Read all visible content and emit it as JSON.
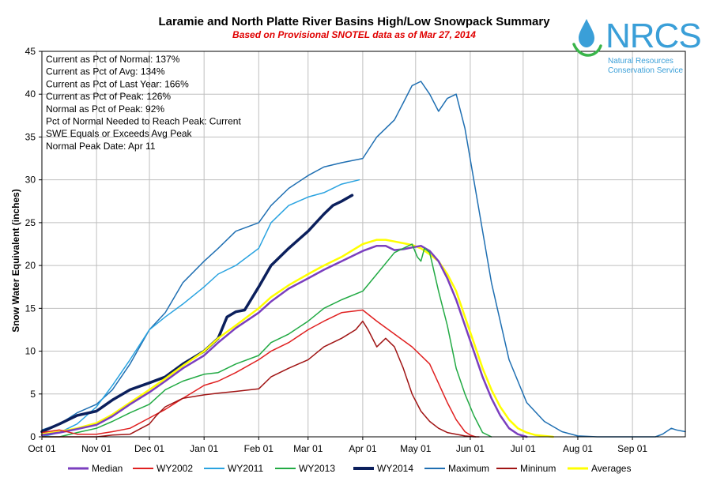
{
  "chart_data": {
    "type": "line",
    "title": "Laramie and North Platte River Basins High/Low Snowpack Summary",
    "subtitle": "Based on Provisional SNOTEL data as of Mar 27, 2014",
    "xlabel": "",
    "ylabel": "Snow Water Equivalent (inches)",
    "xlim": [
      0,
      365
    ],
    "ylim": [
      0,
      45
    ],
    "y_ticks": [
      0,
      5,
      10,
      15,
      20,
      25,
      30,
      35,
      40,
      45
    ],
    "x_ticks": [
      {
        "day": 0,
        "label": "Oct 01"
      },
      {
        "day": 31,
        "label": "Nov 01"
      },
      {
        "day": 61,
        "label": "Dec 01"
      },
      {
        "day": 92,
        "label": "Jan 01"
      },
      {
        "day": 123,
        "label": "Feb 01"
      },
      {
        "day": 151,
        "label": "Mar 01"
      },
      {
        "day": 182,
        "label": "Apr 01"
      },
      {
        "day": 212,
        "label": "May 01"
      },
      {
        "day": 243,
        "label": "Jun 01"
      },
      {
        "day": 273,
        "label": "Jul 01"
      },
      {
        "day": 304,
        "label": "Aug 01"
      },
      {
        "day": 335,
        "label": "Sep 01"
      }
    ],
    "grid": true,
    "legend_position": "bottom",
    "stats": [
      "Current  as Pct of Normal: 137%",
      "Current  as Pct of Avg: 134%",
      "Current  as Pct of Last Year: 166%",
      "Current  as Pct of Peak: 126%",
      "Normal  as Pct of Peak: 92%",
      "Pct of Normal Needed  to Reach Peak: Current",
      "SWE Equals  or Exceeds Avg Peak",
      "Normal  Peak Date: Apr 11"
    ],
    "series": [
      {
        "name": "Maximum",
        "color": "#1f6fb2",
        "width": 1.5,
        "x": [
          0,
          10,
          20,
          31,
          40,
          50,
          61,
          70,
          80,
          92,
          100,
          110,
          123,
          130,
          140,
          151,
          160,
          170,
          182,
          190,
          200,
          205,
          210,
          215,
          220,
          225,
          230,
          235,
          240,
          245,
          255,
          265,
          275,
          285,
          295,
          304,
          315,
          330,
          340,
          348,
          352,
          357,
          360,
          365
        ],
        "y": [
          0.8,
          1.5,
          2.8,
          3.8,
          5.5,
          8.5,
          12.5,
          14.5,
          18,
          20.5,
          22,
          24,
          25,
          27,
          29,
          30.5,
          31.5,
          32,
          32.5,
          35,
          37,
          39,
          41,
          41.5,
          40,
          38,
          39.5,
          40,
          36,
          30,
          18,
          9,
          4,
          1.8,
          0.6,
          0.1,
          0,
          0,
          0,
          0,
          0.3,
          1,
          0.8,
          0.6
        ]
      },
      {
        "name": "WY2011",
        "color": "#2aa3e0",
        "width": 1.5,
        "x": [
          0,
          10,
          20,
          31,
          40,
          50,
          61,
          70,
          80,
          92,
          100,
          110,
          123,
          130,
          140,
          151,
          160,
          170,
          180
        ],
        "y": [
          0,
          0.5,
          1.5,
          3.5,
          6,
          9,
          12.5,
          14,
          15.5,
          17.5,
          19,
          20,
          22,
          25,
          27,
          28,
          28.5,
          29.5,
          30
        ]
      },
      {
        "name": "WY2014",
        "color": "#0b1f5c",
        "width": 3.5,
        "x": [
          0,
          10,
          20,
          31,
          40,
          50,
          61,
          70,
          80,
          92,
          100,
          105,
          110,
          115,
          123,
          130,
          140,
          151,
          160,
          165,
          170,
          176
        ],
        "y": [
          0.6,
          1.5,
          2.5,
          3,
          4.3,
          5.5,
          6.3,
          7,
          8.5,
          10,
          11.5,
          14,
          14.6,
          14.8,
          17.5,
          20,
          22,
          24,
          26,
          27,
          27.5,
          28.2
        ]
      },
      {
        "name": "Averages",
        "color": "#ffff00",
        "width": 2.5,
        "x": [
          0,
          10,
          20,
          31,
          40,
          50,
          61,
          70,
          80,
          92,
          100,
          110,
          123,
          130,
          140,
          151,
          160,
          170,
          182,
          190,
          195,
          200,
          205,
          210,
          215,
          220,
          225,
          230,
          235,
          240,
          245,
          250,
          255,
          260,
          265,
          270,
          275,
          280,
          285,
          290
        ],
        "y": [
          0.3,
          0.6,
          1,
          1.6,
          2.6,
          4,
          5.5,
          6.8,
          8.3,
          10,
          11.5,
          13,
          15,
          16.3,
          17.7,
          19,
          20,
          21,
          22.5,
          23,
          23,
          22.8,
          22.6,
          22.4,
          22,
          21.3,
          20.5,
          19,
          17,
          14,
          11,
          8,
          5.5,
          3.5,
          2,
          1,
          0.5,
          0.2,
          0.1,
          0
        ]
      },
      {
        "name": "Median",
        "color": "#7b3fbf",
        "width": 2.5,
        "x": [
          0,
          10,
          20,
          31,
          40,
          50,
          61,
          70,
          80,
          92,
          100,
          110,
          123,
          130,
          140,
          151,
          160,
          170,
          182,
          190,
          195,
          200,
          205,
          210,
          215,
          220,
          225,
          230,
          235,
          240,
          245,
          250,
          255,
          260,
          265,
          270,
          275
        ],
        "y": [
          0.2,
          0.5,
          0.9,
          1.4,
          2.4,
          3.8,
          5.2,
          6.5,
          8,
          9.5,
          11,
          12.7,
          14.5,
          15.8,
          17.3,
          18.5,
          19.5,
          20.5,
          21.7,
          22.3,
          22.3,
          21.8,
          21.9,
          22.1,
          22.3,
          21.7,
          20.5,
          18.5,
          16,
          13,
          10,
          7,
          4.5,
          2.5,
          1,
          0.3,
          0
        ]
      },
      {
        "name": "WY2013",
        "color": "#22aa44",
        "width": 1.5,
        "x": [
          0,
          10,
          20,
          31,
          40,
          50,
          61,
          70,
          80,
          92,
          100,
          110,
          123,
          130,
          140,
          151,
          160,
          170,
          182,
          190,
          200,
          210,
          213,
          215,
          217,
          220,
          225,
          230,
          235,
          240,
          245,
          250,
          255
        ],
        "y": [
          0,
          0,
          0.5,
          1,
          1.8,
          2.8,
          3.8,
          5.5,
          6.5,
          7.3,
          7.5,
          8.5,
          9.5,
          11,
          12,
          13.5,
          15,
          16,
          17,
          19,
          21.5,
          22.5,
          21,
          20.5,
          22,
          21.5,
          17,
          13,
          8,
          5,
          2.5,
          0.5,
          0
        ]
      },
      {
        "name": "WY2002",
        "color": "#e02020",
        "width": 1.5,
        "x": [
          0,
          10,
          20,
          31,
          40,
          50,
          61,
          70,
          80,
          92,
          100,
          110,
          123,
          130,
          140,
          151,
          160,
          170,
          182,
          190,
          200,
          210,
          220,
          230,
          235,
          240,
          243,
          246
        ],
        "y": [
          0.5,
          0.8,
          0.3,
          0.3,
          0.6,
          1,
          2.2,
          3.2,
          4.5,
          6,
          6.5,
          7.5,
          9,
          10,
          11,
          12.5,
          13.5,
          14.5,
          14.8,
          13.5,
          12,
          10.5,
          8.5,
          4,
          2,
          0.6,
          0.2,
          0
        ]
      },
      {
        "name": "Mininum",
        "color": "#a01414",
        "width": 1.5,
        "x": [
          0,
          10,
          20,
          31,
          40,
          50,
          61,
          65,
          70,
          80,
          92,
          100,
          110,
          123,
          130,
          140,
          151,
          160,
          170,
          178,
          182,
          185,
          190,
          195,
          200,
          205,
          210,
          215,
          220,
          225,
          230,
          240,
          245,
          248
        ],
        "y": [
          0,
          0,
          0,
          0,
          0.2,
          0.3,
          1.5,
          2.5,
          3.5,
          4.5,
          4.9,
          5.1,
          5.3,
          5.6,
          7,
          8,
          9,
          10.5,
          11.5,
          12.5,
          13.5,
          12.5,
          10.5,
          11.5,
          10.5,
          8,
          5,
          3,
          1.8,
          1,
          0.5,
          0.1,
          0,
          0
        ]
      }
    ]
  },
  "legend": [
    {
      "name": "Median",
      "color": "#7b3fbf",
      "width": 3
    },
    {
      "name": "WY2002",
      "color": "#e02020",
      "width": 2
    },
    {
      "name": "WY2011",
      "color": "#2aa3e0",
      "width": 2
    },
    {
      "name": "WY2013",
      "color": "#22aa44",
      "width": 2
    },
    {
      "name": "WY2014",
      "color": "#0b1f5c",
      "width": 4
    },
    {
      "name": "Maximum",
      "color": "#1f6fb2",
      "width": 2
    },
    {
      "name": "Mininum",
      "color": "#a01414",
      "width": 2
    },
    {
      "name": "Averages",
      "color": "#ffff00",
      "width": 3
    }
  ],
  "logo": {
    "name": "NRCS",
    "line1": "Natural Resources",
    "line2": "Conservation Service",
    "color": "#3a9fd8",
    "accent": "#39b54a",
    "icon": "water-drop-icon"
  }
}
